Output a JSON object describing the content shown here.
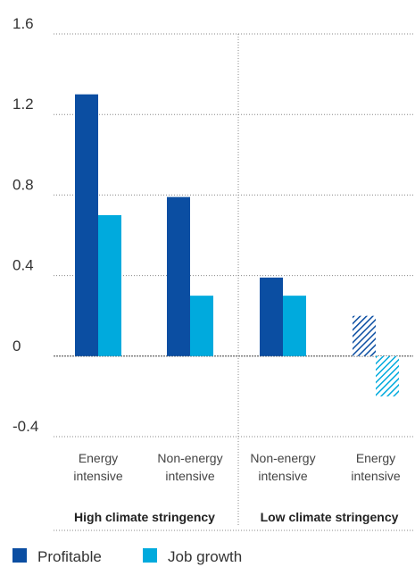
{
  "chart_data": {
    "type": "bar",
    "title": "",
    "xlabel": "",
    "ylabel": "",
    "ylim": [
      -0.4,
      1.6
    ],
    "yticks": [
      "1.6",
      "1.2",
      "0.8",
      "0.4",
      "0",
      "-0.4"
    ],
    "grid": "horizontal-dotted",
    "legend_position": "bottom-left",
    "groups": [
      {
        "label": "High climate stringency",
        "categories": [
          0,
          1
        ]
      },
      {
        "label": "Low climate stringency",
        "categories": [
          2,
          3
        ]
      }
    ],
    "categories": [
      {
        "line1": "Energy",
        "line2": "intensive"
      },
      {
        "line1": "Non-energy",
        "line2": "intensive"
      },
      {
        "line1": "Non-energy",
        "line2": "intensive"
      },
      {
        "line1": "Energy",
        "line2": "intensive"
      }
    ],
    "series": [
      {
        "name": "Profitable",
        "color": "#0b4ea2",
        "values": [
          1.3,
          0.79,
          0.39,
          0.2
        ],
        "hatched": [
          false,
          false,
          false,
          true
        ]
      },
      {
        "name": "Job growth",
        "color": "#00aadd",
        "values": [
          0.7,
          0.3,
          0.3,
          -0.2
        ],
        "hatched": [
          false,
          false,
          false,
          true
        ]
      }
    ]
  }
}
